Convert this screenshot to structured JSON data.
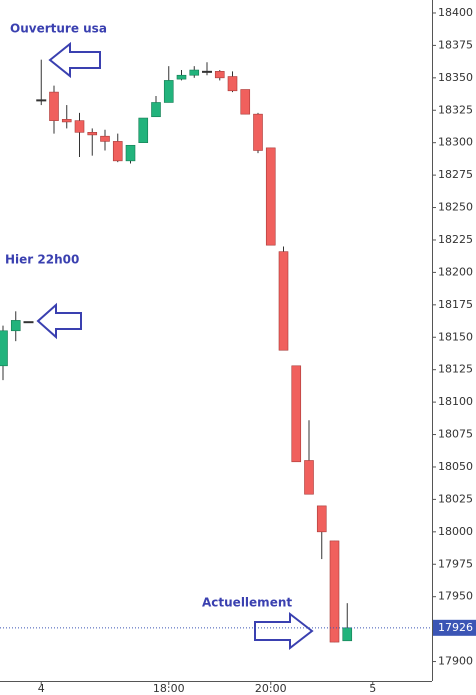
{
  "chart_data": {
    "type": "candlestick",
    "categories": [
      null,
      null,
      null,
      "4",
      null,
      null,
      null,
      null,
      null,
      null,
      null,
      null,
      null,
      "18:00",
      null,
      null,
      null,
      null,
      null,
      null,
      null,
      "20:00",
      null,
      null,
      null,
      null,
      null,
      null,
      null,
      "5"
    ],
    "open": [
      18128,
      18155,
      18162,
      18333,
      18339,
      18318,
      18317,
      18308,
      18305,
      18301,
      18286,
      18300,
      18320,
      18331,
      18349,
      18352,
      18355,
      18355,
      18351,
      18341,
      18322,
      18296,
      18216,
      18128,
      18055,
      18020,
      17993,
      17916,
      null,
      null
    ],
    "high": [
      18159,
      18170,
      18162,
      18364,
      18344,
      18329,
      18323,
      18311,
      18310,
      18307,
      18298,
      18319,
      18336,
      18359,
      18356,
      18359,
      18362,
      18356,
      18355,
      18341,
      18323,
      18296,
      18220,
      18128,
      18086,
      18020,
      17993,
      17945,
      null,
      null
    ],
    "low": [
      18117,
      18147,
      18162,
      18329,
      18307,
      18311,
      18289,
      18290,
      18294,
      18285,
      18284,
      18300,
      18320,
      18331,
      18348,
      18350,
      18352,
      18348,
      18339,
      18322,
      18292,
      18221,
      18140,
      18054,
      18029,
      17979,
      17915,
      17916,
      null,
      null
    ],
    "close": [
      18155,
      18163,
      18162,
      18333,
      18317,
      18316,
      18308,
      18306,
      18301,
      18286,
      18298,
      18319,
      18331,
      18348,
      18352,
      18356,
      18355,
      18350,
      18340,
      18322,
      18294,
      18221,
      18140,
      18054,
      18029,
      18000,
      17915,
      17926,
      null,
      null
    ],
    "up_color": "#22b37c",
    "down_color": "#f0605d",
    "ylim": [
      17885,
      18410
    ],
    "yticks": [
      17900,
      17925,
      17950,
      17975,
      18000,
      18025,
      18050,
      18075,
      18100,
      18125,
      18150,
      18175,
      18200,
      18225,
      18250,
      18275,
      18300,
      18325,
      18350,
      18375,
      18400
    ],
    "current_price": 17926,
    "annotations": [
      "Ouverture usa",
      "Hier 22h00",
      "Actuellement"
    ]
  }
}
